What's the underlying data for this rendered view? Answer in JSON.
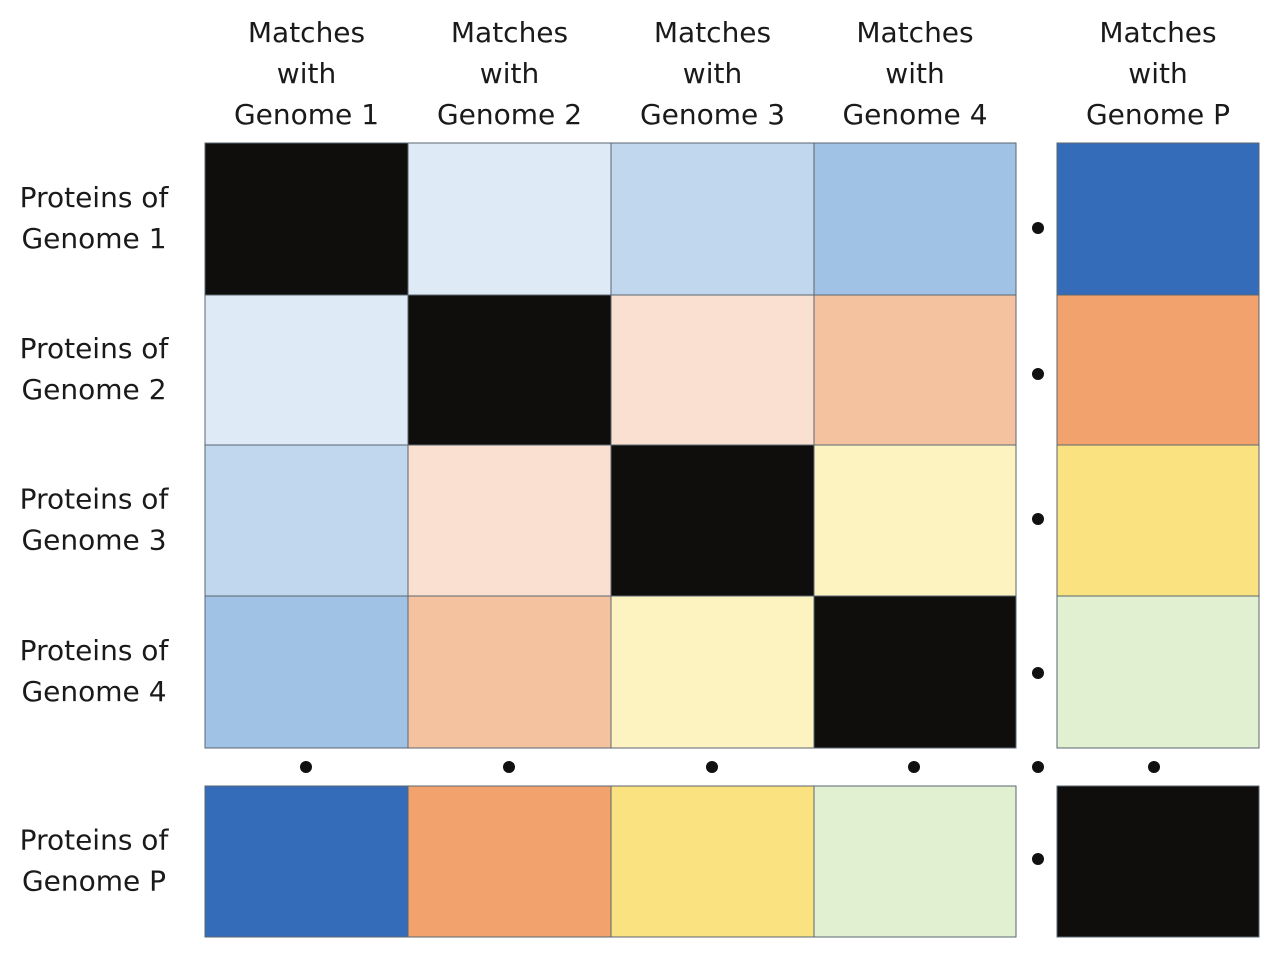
{
  "column_headers": [
    {
      "line1": "Matches",
      "line2": "with",
      "line3": "Genome 1"
    },
    {
      "line1": "Matches",
      "line2": "with",
      "line3": "Genome 2"
    },
    {
      "line1": "Matches",
      "line2": "with",
      "line3": "Genome 3"
    },
    {
      "line1": "Matches",
      "line2": "with",
      "line3": "Genome 4"
    },
    {
      "line1": "Matches",
      "line2": "with",
      "line3": "Genome P"
    }
  ],
  "row_headers": [
    {
      "line1": "Proteins of",
      "line2": "Genome 1"
    },
    {
      "line1": "Proteins of",
      "line2": "Genome 2"
    },
    {
      "line1": "Proteins of",
      "line2": "Genome 3"
    },
    {
      "line1": "Proteins of",
      "line2": "Genome 4"
    },
    {
      "line1": "Proteins of",
      "line2": "Genome P"
    }
  ],
  "cell_colors": [
    [
      "#100e0d",
      "#deebf6",
      "#c0d7ee",
      "#a0c2e4",
      "#346cba"
    ],
    [
      "#deebf6",
      "#100e0d",
      "#f9e0d0",
      "#f5c29f",
      "#f1a26d"
    ],
    [
      "#c0d7ee",
      "#f9e0d0",
      "#100e0d",
      "#fdf3c0",
      "#fae280"
    ],
    [
      "#a0c2e4",
      "#f5c29f",
      "#fdf3c0",
      "#100e0d",
      "#e1f0d1"
    ],
    [
      "#346cba",
      "#f1a26d",
      "#fae280",
      "#e1f0d1",
      "#100e0d"
    ]
  ],
  "gap_marker": "•"
}
